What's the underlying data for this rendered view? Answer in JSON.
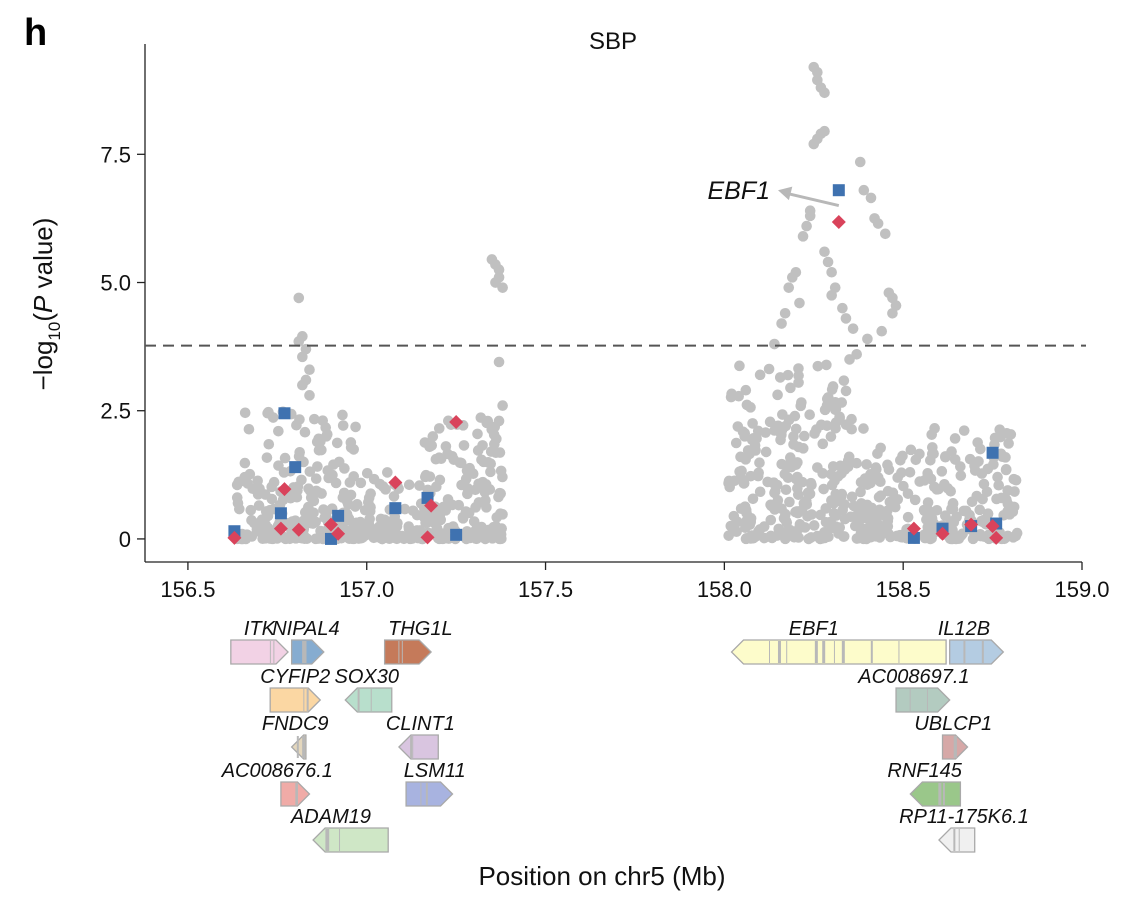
{
  "panel_label": "h",
  "chart_data": {
    "type": "scatter",
    "title": "SBP",
    "xlabel": "Position on chr5 (Mb)",
    "ylabel_prefix": "−log",
    "ylabel_subscript": "10",
    "ylabel_open": "(",
    "ylabel_italic": "P",
    "ylabel_suffix": " value)",
    "xlim": [
      156.38,
      159.0
    ],
    "ylim": [
      -0.45,
      9.3
    ],
    "x_ticks": [
      156.5,
      157.0,
      157.5,
      158.0,
      158.5,
      159.0
    ],
    "x_tick_labels": [
      "156.5",
      "157.0",
      "157.5",
      "158.0",
      "158.5",
      "159.0"
    ],
    "y_ticks": [
      0,
      2.5,
      5.0,
      7.5
    ],
    "y_tick_labels": [
      "0",
      "2.5",
      "5.0",
      "7.5"
    ],
    "significance_threshold": 3.77,
    "colors": {
      "background_points": "#c0c0c0",
      "square_points": "#3f72b0",
      "diamond_points": "#d9435b",
      "threshold_line": "#555555",
      "axis": "#222222",
      "arrow": "#b8b8b8"
    },
    "annotation": {
      "text": "EBF1",
      "x_from": 158.32,
      "y_from": 6.5,
      "x_to": 158.15,
      "y_to": 6.8
    },
    "grey_clusters": [
      {
        "x_min": 156.63,
        "x_max": 156.97,
        "y_max": 2.5,
        "n": 220,
        "skew": 2.2,
        "seed": 11
      },
      {
        "x_min": 156.97,
        "x_max": 157.18,
        "y_max": 1.3,
        "n": 110,
        "skew": 2.4,
        "seed": 12
      },
      {
        "x_min": 157.16,
        "x_max": 157.38,
        "y_max": 2.4,
        "n": 150,
        "skew": 1.8,
        "seed": 13
      },
      {
        "x_min": 158.01,
        "x_max": 158.36,
        "y_max": 3.4,
        "n": 230,
        "skew": 1.7,
        "seed": 14
      },
      {
        "x_min": 158.36,
        "x_max": 158.82,
        "y_max": 2.2,
        "n": 240,
        "skew": 2.0,
        "seed": 15
      }
    ],
    "grey_points_x": [
      156.81,
      156.82,
      156.81,
      156.83,
      156.82,
      156.84,
      156.83,
      156.82,
      156.84,
      157.35,
      157.36,
      157.37,
      157.37,
      157.36,
      157.38,
      157.37,
      157.38,
      157.37,
      158.25,
      158.26,
      158.26,
      158.27,
      158.28,
      158.28,
      158.27,
      158.26,
      158.25,
      158.24,
      158.24,
      158.23,
      158.22,
      158.28,
      158.29,
      158.3,
      158.31,
      158.3,
      158.33,
      158.34,
      158.36,
      158.38,
      158.39,
      158.41,
      158.42,
      158.43,
      158.45,
      158.46,
      158.47,
      158.48,
      158.47,
      158.44,
      158.4,
      158.37,
      158.35,
      158.2,
      158.19,
      158.18,
      158.21,
      158.17,
      158.16,
      158.14,
      158.1,
      158.06
    ],
    "grey_points_y": [
      4.7,
      3.95,
      3.85,
      3.7,
      3.55,
      3.3,
      3.1,
      3.0,
      2.8,
      5.45,
      5.35,
      5.25,
      5.1,
      5.0,
      4.9,
      3.45,
      2.6,
      2.3,
      9.2,
      9.1,
      8.95,
      8.8,
      8.7,
      7.95,
      7.9,
      7.8,
      7.7,
      6.4,
      6.3,
      6.1,
      5.9,
      5.6,
      5.4,
      5.2,
      4.9,
      4.75,
      4.5,
      4.3,
      4.1,
      7.35,
      6.8,
      6.65,
      6.25,
      6.15,
      5.95,
      4.8,
      4.7,
      4.55,
      4.4,
      4.05,
      3.9,
      3.6,
      3.5,
      5.2,
      5.1,
      4.9,
      4.6,
      4.4,
      4.2,
      3.8,
      3.2,
      2.9
    ],
    "square_points_x": [
      156.63,
      156.76,
      156.77,
      156.8,
      156.9,
      156.92,
      157.08,
      157.17,
      157.25,
      158.32,
      158.53,
      158.61,
      158.69,
      158.75,
      158.76
    ],
    "square_points_y": [
      0.15,
      0.5,
      2.45,
      1.4,
      0.0,
      0.45,
      0.6,
      0.8,
      0.08,
      6.8,
      0.02,
      0.2,
      0.25,
      1.68,
      0.3
    ],
    "diamond_points_x": [
      156.63,
      156.76,
      156.77,
      156.81,
      156.9,
      156.92,
      157.08,
      157.17,
      157.18,
      157.25,
      158.32,
      158.53,
      158.61,
      158.69,
      158.75,
      158.76
    ],
    "diamond_points_y": [
      0.02,
      0.2,
      0.97,
      0.18,
      0.28,
      0.1,
      1.1,
      0.03,
      0.65,
      2.28,
      6.18,
      0.2,
      0.1,
      0.28,
      0.25,
      0.02
    ],
    "genes": [
      {
        "name": "ITK",
        "start": 156.62,
        "end": 156.78,
        "strand": "+",
        "color": "#f2d2e5",
        "row": 0,
        "label_x": 156.7
      },
      {
        "name": "NIPAL4",
        "start": 156.79,
        "end": 156.88,
        "strand": "+",
        "color": "#86acd0",
        "row": 0,
        "label_x": 156.83
      },
      {
        "name": "THG1L",
        "start": 157.05,
        "end": 157.18,
        "strand": "+",
        "color": "#c57a5a",
        "row": 0,
        "label_x": 157.15
      },
      {
        "name": "EBF1",
        "start": 158.02,
        "end": 158.62,
        "strand": "-",
        "color": "#fdfccb",
        "row": 0,
        "label_x": 158.25
      },
      {
        "name": "IL12B",
        "start": 158.63,
        "end": 158.78,
        "strand": "+",
        "color": "#b4cce2",
        "row": 0,
        "label_x": 158.67
      },
      {
        "name": "CYFIP2",
        "start": 156.73,
        "end": 156.87,
        "strand": "+",
        "color": "#fbd7a3",
        "row": 1,
        "label_x": 156.8
      },
      {
        "name": "SOX30",
        "start": 156.94,
        "end": 157.07,
        "strand": "-",
        "color": "#b8dfcc",
        "row": 1,
        "label_x": 157.0
      },
      {
        "name": "AC008697.1",
        "start": 158.48,
        "end": 158.63,
        "strand": "+",
        "color": "#b3cbc0",
        "row": 1,
        "label_x": 158.53
      },
      {
        "name": "FNDC9",
        "start": 156.79,
        "end": 156.83,
        "strand": "-",
        "color": "#e4d7bd",
        "row": 2,
        "label_x": 156.8
      },
      {
        "name": "CLINT1",
        "start": 157.09,
        "end": 157.2,
        "strand": "-",
        "color": "#d9c5e0",
        "row": 2,
        "label_x": 157.15
      },
      {
        "name": "UBLCP1",
        "start": 158.61,
        "end": 158.68,
        "strand": "+",
        "color": "#d6a8a7",
        "row": 2,
        "label_x": 158.64
      },
      {
        "name": "AC008676.1",
        "start": 156.76,
        "end": 156.84,
        "strand": "+",
        "color": "#f0aba7",
        "row": 3,
        "label_x": 156.75
      },
      {
        "name": "LSM11",
        "start": 157.11,
        "end": 157.24,
        "strand": "+",
        "color": "#a8b3e0",
        "row": 3,
        "label_x": 157.19
      },
      {
        "name": "RNF145",
        "start": 158.52,
        "end": 158.66,
        "strand": "-",
        "color": "#9ac78a",
        "row": 3,
        "label_x": 158.56
      },
      {
        "name": "ADAM19",
        "start": 156.85,
        "end": 157.06,
        "strand": "-",
        "color": "#cfe7c6",
        "row": 4,
        "label_x": 156.9
      },
      {
        "name": "RP11-175K6.1",
        "start": 158.6,
        "end": 158.7,
        "strand": "-",
        "color": "#f0f0f0",
        "row": 4,
        "label_x": 158.67
      }
    ]
  }
}
